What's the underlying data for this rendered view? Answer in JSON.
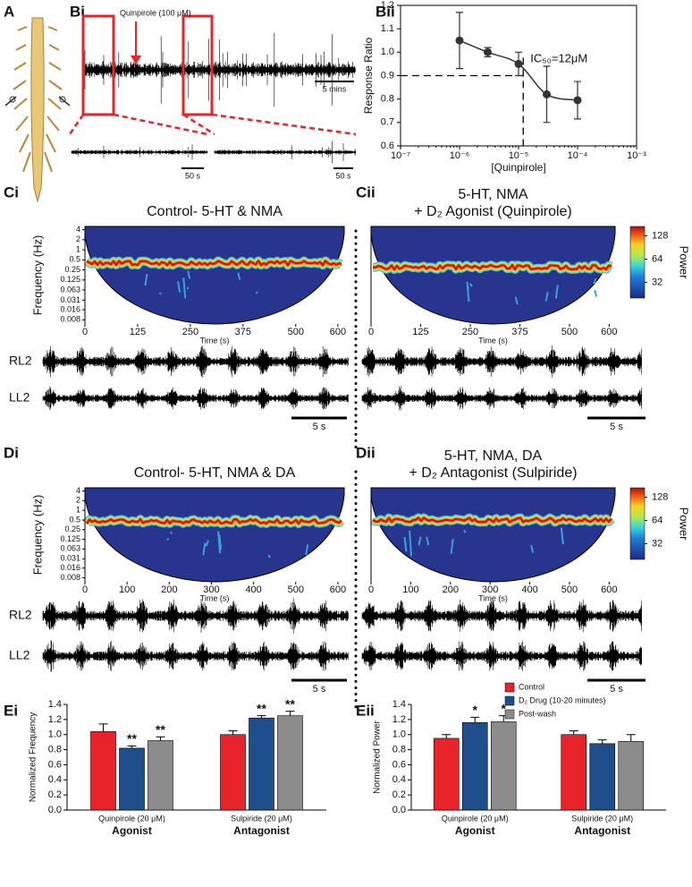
{
  "figure": {
    "panels": [
      "A",
      "Bi",
      "Bii",
      "Ci",
      "Cii",
      "Di",
      "Dii",
      "Ei",
      "Eii"
    ],
    "drug_label": "Quinpirole (100 μM)",
    "scale_bars": {
      "main": "5 mins",
      "zoom": "50 s",
      "trace": "5 s"
    },
    "traces": [
      "RL2",
      "LL2"
    ]
  },
  "chart_data": [
    {
      "type": "dose-response",
      "x": [
        1e-06,
        3e-06,
        1e-05,
        3e-05,
        0.0001
      ],
      "values": [
        1.05,
        1.0,
        0.95,
        0.82,
        0.795
      ],
      "errors": [
        0.12,
        0.02,
        0.05,
        0.12,
        0.08
      ],
      "xlabel": "[Quinpirole]",
      "ylabel": "Response Ratio",
      "log_x": true,
      "xlim": [
        1e-07,
        0.001
      ],
      "xticks": [
        {
          "value": 1e-07,
          "label": "10⁻⁷"
        },
        {
          "value": 1e-06,
          "label": "10⁻⁶"
        },
        {
          "value": 1e-05,
          "label": "10⁻⁵"
        },
        {
          "value": 0.0001,
          "label": "10⁻⁴"
        },
        {
          "value": 0.001,
          "label": "10⁻³"
        }
      ],
      "ylim": [
        0.6,
        1.2
      ],
      "yticks": [
        0.6,
        0.7,
        0.8,
        0.9,
        {
          "value": 1,
          "label": "1.0"
        },
        1.1,
        1.2
      ],
      "ic50": 1.2e-05,
      "threshold": 0.9,
      "annotation": "IC₅₀=12μM",
      "color": "#333333"
    },
    {
      "type": "spectrogram",
      "title": [
        "Control- 5-HT & NMA"
      ],
      "ylabel": "Frequency (Hz)",
      "xlabel": "Time (s)",
      "xlim": [
        0,
        615
      ],
      "xticks": [
        0,
        125,
        250,
        375,
        500,
        600
      ],
      "ylim": [
        0.006,
        5
      ],
      "yticks": [
        4,
        2,
        1,
        0.5,
        0.25,
        0.125,
        0.063,
        0.031,
        0.016,
        0.008
      ],
      "band": 0.4
    },
    {
      "type": "spectrogram",
      "title": [
        "5-HT, NMA",
        "+ D₂ Agonist (Quinpirole)"
      ],
      "xlabel": "Time (s)",
      "xlim": [
        0,
        615
      ],
      "xticks": [
        0,
        125,
        250,
        375,
        500,
        600
      ],
      "ylim": [
        0.006,
        5
      ],
      "band": 0.3,
      "colorbar": {
        "label": "Power",
        "lim": [
          20,
          170
        ],
        "ticks": [
          32,
          64,
          128
        ]
      }
    },
    {
      "type": "spectrogram",
      "title": [
        "Control- 5-HT, NMA & DA"
      ],
      "ylabel": "Frequency (Hz)",
      "xlabel": "Time (s)",
      "xlim": [
        0,
        615
      ],
      "xticks": [
        0,
        100,
        200,
        300,
        400,
        500,
        600
      ],
      "ylim": [
        0.006,
        5
      ],
      "yticks": [
        4,
        2,
        1,
        0.5,
        0.25,
        0.125,
        0.063,
        0.031,
        0.016,
        0.008
      ],
      "band": 0.45
    },
    {
      "type": "spectrogram",
      "title": [
        "5-HT, NMA, DA",
        "+ D₂ Antagonist (Sulpiride)"
      ],
      "xlabel": "Time (s)",
      "xlim": [
        0,
        615
      ],
      "xticks": [
        0,
        100,
        200,
        300,
        400,
        500,
        600
      ],
      "ylim": [
        0.006,
        5
      ],
      "band": 0.5,
      "colorbar": {
        "label": "Power",
        "lim": [
          20,
          170
        ],
        "ticks": [
          32,
          64,
          128
        ]
      }
    },
    {
      "type": "bar",
      "ylabel": "Normalized Frequency",
      "categories": [
        "Quinpirole (20 μM)",
        "Sulpiride (20 μM)"
      ],
      "groups": [
        "Agonist",
        "Antagonist"
      ],
      "series": [
        {
          "color": "#e8232a",
          "values": [
            1.04,
            1.0
          ],
          "errors": [
            0.1,
            0.05
          ]
        },
        {
          "color": "#1f4e8c",
          "values": [
            0.82,
            1.22
          ],
          "errors": [
            0.03,
            0.03
          ]
        },
        {
          "color": "#8c8c8c",
          "values": [
            0.92,
            1.25
          ],
          "errors": [
            0.05,
            0.06
          ]
        }
      ],
      "annotations": [
        {
          "series": 1,
          "index": 0,
          "text": "**"
        },
        {
          "series": 2,
          "index": 0,
          "text": "**"
        },
        {
          "series": 1,
          "index": 1,
          "text": "**"
        },
        {
          "series": 2,
          "index": 1,
          "text": "**"
        }
      ],
      "ylim": [
        0,
        1.4
      ],
      "yticks": [
        {
          "value": 0,
          "label": "0.0"
        },
        0.2,
        0.4,
        0.6,
        0.8,
        {
          "value": 1,
          "label": "1.0"
        },
        1.2,
        1.4
      ]
    },
    {
      "type": "bar",
      "ylabel": "Normalized Power",
      "categories": [
        "Quinpirole (20 μM)",
        "Sulpiride (20 μM)"
      ],
      "groups": [
        "Agonist",
        "Antagonist"
      ],
      "series": [
        {
          "name": "Control",
          "color": "#e8232a",
          "values": [
            0.95,
            1.0
          ],
          "errors": [
            0.05,
            0.05
          ]
        },
        {
          "name": "D₂ Drug (10-20 minutes)",
          "color": "#1f4e8c",
          "values": [
            1.16,
            0.88
          ],
          "errors": [
            0.07,
            0.05
          ]
        },
        {
          "name": "Post-wash",
          "color": "#8c8c8c",
          "values": [
            1.17,
            0.91
          ],
          "errors": [
            0.08,
            0.09
          ]
        }
      ],
      "annotations": [
        {
          "series": 1,
          "index": 0,
          "text": "*"
        },
        {
          "series": 2,
          "index": 0,
          "text": "*"
        }
      ],
      "ylim": [
        0,
        1.4
      ],
      "yticks": [
        {
          "value": 0,
          "label": "0.0"
        },
        0.2,
        0.4,
        0.6,
        0.8,
        {
          "value": 1,
          "label": "1.0"
        },
        1.2,
        1.4
      ],
      "legend": "top-right"
    }
  ]
}
